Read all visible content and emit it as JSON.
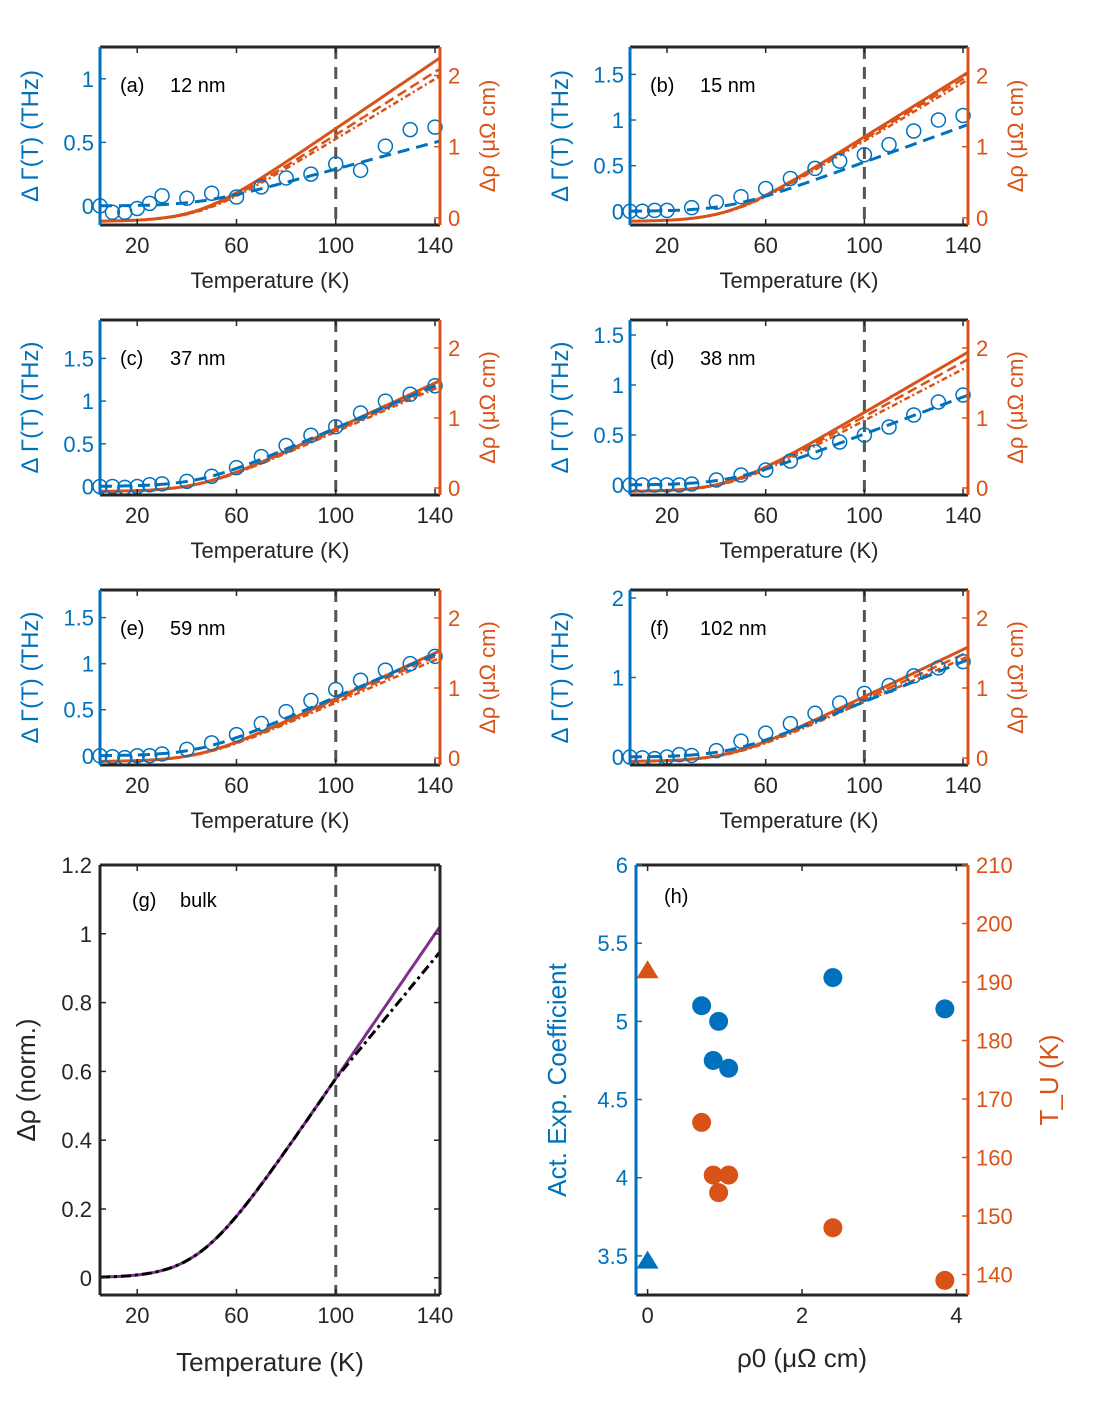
{
  "colors": {
    "blue": "#0072BD",
    "orange": "#D95319",
    "purple": "#7E2F8E",
    "black": "#000000",
    "gray_dash": "#555555",
    "axis": "#262626"
  },
  "shared": {
    "xlabel": "Temperature (K)",
    "ylabel_left": "Δ Γ(T) (THz)",
    "ylabel_right": "Δρ (μΩ cm)",
    "xticks": [
      20,
      60,
      100,
      140
    ],
    "xlim": [
      5,
      142
    ],
    "ylim_right": [
      -0.1,
      2.4
    ],
    "yticks_right": [
      0,
      1,
      2
    ],
    "vline_x": 100
  },
  "chart_data": [
    {
      "type": "scatter+line",
      "id": "a",
      "label": "(a)",
      "title": "12 nm",
      "ylim_left": [
        -0.15,
        1.25
      ],
      "yticks_left": [
        "0",
        "0.5",
        "1"
      ],
      "points": {
        "x": [
          5,
          10,
          15,
          20,
          25,
          30,
          40,
          50,
          60,
          70,
          80,
          90,
          100,
          110,
          120,
          130,
          140
        ],
        "y": [
          0.0,
          -0.05,
          -0.05,
          -0.02,
          0.02,
          0.08,
          0.06,
          0.1,
          0.07,
          0.15,
          0.22,
          0.25,
          0.33,
          0.28,
          0.47,
          0.6,
          0.62
        ]
      },
      "blue_fit_end": 0.5,
      "orange_end": [
        2.2,
        1.95,
        2.05
      ]
    },
    {
      "type": "scatter+line",
      "id": "b",
      "label": "(b)",
      "title": "15 nm",
      "ylim_left": [
        -0.15,
        1.8
      ],
      "yticks_left": [
        "0",
        "0.5",
        "1",
        "1.5"
      ],
      "points": {
        "x": [
          5,
          10,
          15,
          20,
          30,
          40,
          50,
          60,
          70,
          80,
          90,
          100,
          110,
          120,
          130,
          140
        ],
        "y": [
          0.0,
          0.0,
          0.01,
          0.01,
          0.04,
          0.1,
          0.16,
          0.25,
          0.36,
          0.47,
          0.55,
          0.62,
          0.73,
          0.88,
          1.0,
          1.05
        ]
      },
      "blue_fit_end": 0.93,
      "orange_end": [
        2.0,
        1.9,
        1.95
      ]
    },
    {
      "type": "scatter+line",
      "id": "c",
      "label": "(c)",
      "title": "37 nm",
      "ylim_left": [
        -0.1,
        1.95
      ],
      "yticks_left": [
        "0",
        "0.5",
        "1",
        "1.5"
      ],
      "points": {
        "x": [
          5,
          10,
          15,
          20,
          25,
          30,
          40,
          50,
          60,
          70,
          80,
          90,
          100,
          110,
          120,
          130,
          140
        ],
        "y": [
          0.0,
          0.0,
          -0.01,
          0.0,
          0.02,
          0.03,
          0.06,
          0.12,
          0.22,
          0.35,
          0.48,
          0.6,
          0.7,
          0.86,
          1.0,
          1.08,
          1.18
        ]
      },
      "blue_fit_end": 1.18,
      "orange_end": [
        1.5,
        1.42,
        1.45
      ]
    },
    {
      "type": "scatter+line",
      "id": "d",
      "label": "(d)",
      "title": "38 nm",
      "ylim_left": [
        -0.1,
        1.65
      ],
      "yticks_left": [
        "0",
        "0.5",
        "1",
        "1.5"
      ],
      "points": {
        "x": [
          5,
          10,
          15,
          20,
          25,
          30,
          40,
          50,
          60,
          70,
          80,
          90,
          100,
          110,
          120,
          130,
          140
        ],
        "y": [
          0.0,
          0.0,
          0.0,
          0.0,
          0.0,
          0.01,
          0.05,
          0.1,
          0.15,
          0.24,
          0.33,
          0.43,
          0.5,
          0.58,
          0.7,
          0.83,
          0.9
        ]
      },
      "blue_fit_end": 0.88,
      "orange_end": [
        1.9,
        1.7,
        1.8
      ]
    },
    {
      "type": "scatter+line",
      "id": "e",
      "label": "(e)",
      "title": "59 nm",
      "ylim_left": [
        -0.1,
        1.8
      ],
      "yticks_left": [
        "0",
        "0.5",
        "1",
        "1.5"
      ],
      "points": {
        "x": [
          5,
          10,
          15,
          20,
          25,
          30,
          40,
          50,
          60,
          70,
          80,
          90,
          100,
          110,
          120,
          130,
          140
        ],
        "y": [
          0.0,
          -0.01,
          -0.02,
          0.0,
          0.0,
          0.02,
          0.07,
          0.14,
          0.23,
          0.35,
          0.48,
          0.6,
          0.72,
          0.82,
          0.93,
          1.0,
          1.08
        ]
      },
      "blue_fit_end": 1.1,
      "orange_end": [
        1.5,
        1.4,
        1.45
      ]
    },
    {
      "type": "scatter+line",
      "id": "f",
      "label": "(f)",
      "title": "102 nm",
      "ylim_left": [
        -0.1,
        2.1
      ],
      "yticks_left": [
        "0",
        "1",
        "2"
      ],
      "points": {
        "x": [
          5,
          10,
          15,
          20,
          25,
          30,
          40,
          50,
          60,
          70,
          80,
          90,
          100,
          110,
          120,
          130,
          140
        ],
        "y": [
          0.0,
          -0.01,
          -0.02,
          0.0,
          0.03,
          0.02,
          0.08,
          0.2,
          0.3,
          0.42,
          0.55,
          0.68,
          0.8,
          0.9,
          1.02,
          1.12,
          1.2
        ]
      },
      "blue_fit_end": 1.2,
      "orange_end": [
        1.55,
        1.42,
        1.48
      ]
    },
    {
      "type": "line",
      "id": "g",
      "label": "(g)",
      "title": "bulk",
      "xlabel": "Temperature (K)",
      "ylabel": "Δρ (norm.)",
      "xlim": [
        5,
        142
      ],
      "ylim": [
        -0.05,
        1.2
      ],
      "xticks": [
        20,
        60,
        100,
        140
      ],
      "yticks": [
        "0",
        "0.2",
        "0.4",
        "0.6",
        "0.8",
        "1",
        "1.2"
      ],
      "series": [
        {
          "name": "data",
          "color": "purple",
          "end": 1.0
        },
        {
          "name": "fit",
          "color": "black",
          "end": 0.93
        }
      ]
    },
    {
      "type": "scatter",
      "id": "h",
      "label": "(h)",
      "xlabel": "ρ0 (μΩ cm)",
      "ylabel_left": "Act. Exp. Coefficient",
      "ylabel_right": "T_U (K)",
      "xlim": [
        -0.15,
        4.15
      ],
      "xticks": [
        "0",
        "2",
        "4"
      ],
      "ylim_left": [
        3.25,
        6.0
      ],
      "yticks_left": [
        "3.5",
        "4",
        "4.5",
        "5",
        "5.5",
        "6"
      ],
      "ylim_right": [
        136.5,
        210
      ],
      "yticks_right": [
        "140",
        "150",
        "160",
        "170",
        "180",
        "190",
        "200",
        "210"
      ],
      "coefficient_points": {
        "x": [
          0.7,
          0.85,
          0.92,
          1.05,
          2.4,
          3.85
        ],
        "y": [
          5.1,
          4.75,
          5.0,
          4.7,
          5.28,
          5.08
        ]
      },
      "coefficient_bulk": {
        "x": 0,
        "y": 3.47
      },
      "tu_points": {
        "x": [
          0.7,
          0.85,
          0.92,
          1.05,
          2.4,
          3.85
        ],
        "y": [
          166,
          157,
          154,
          157,
          148,
          139
        ]
      },
      "tu_bulk": {
        "x": 0,
        "y": 192
      }
    }
  ]
}
